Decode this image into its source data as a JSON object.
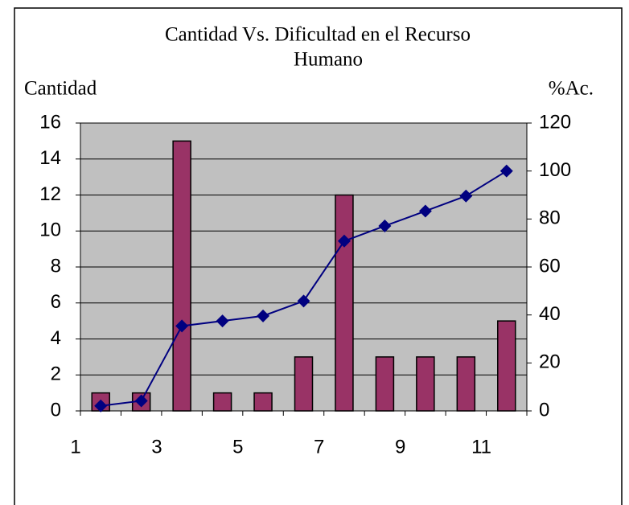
{
  "chart_data": {
    "type": "pareto",
    "title": "Cantidad Vs. Dificultad en el Recurso",
    "subtitle": "Humano",
    "y_label": "Cantidad",
    "y2_label": "%Ac.",
    "categories": [
      "1",
      null,
      "3",
      null,
      "5",
      null,
      "7",
      null,
      "9",
      null,
      "11"
    ],
    "series": [
      {
        "name": "Cantidad",
        "type": "bar",
        "color": "#993366",
        "values": [
          1,
          1,
          15,
          1,
          1,
          3,
          12,
          3,
          3,
          3,
          5
        ]
      },
      {
        "name": "%Ac.",
        "type": "line",
        "axis": "y2",
        "color": "#000080",
        "values": [
          2.1,
          4.2,
          35.4,
          37.5,
          39.6,
          45.8,
          70.8,
          77.1,
          83.3,
          89.6,
          100
        ]
      }
    ],
    "ylim": [
      0,
      16
    ],
    "yticks": [
      0,
      2,
      4,
      6,
      8,
      10,
      12,
      14,
      16
    ],
    "y2lim": [
      0,
      120
    ],
    "y2ticks": [
      0,
      20,
      40,
      60,
      80,
      100,
      120
    ],
    "grid": true,
    "plot_background": "#c0c0c0"
  }
}
